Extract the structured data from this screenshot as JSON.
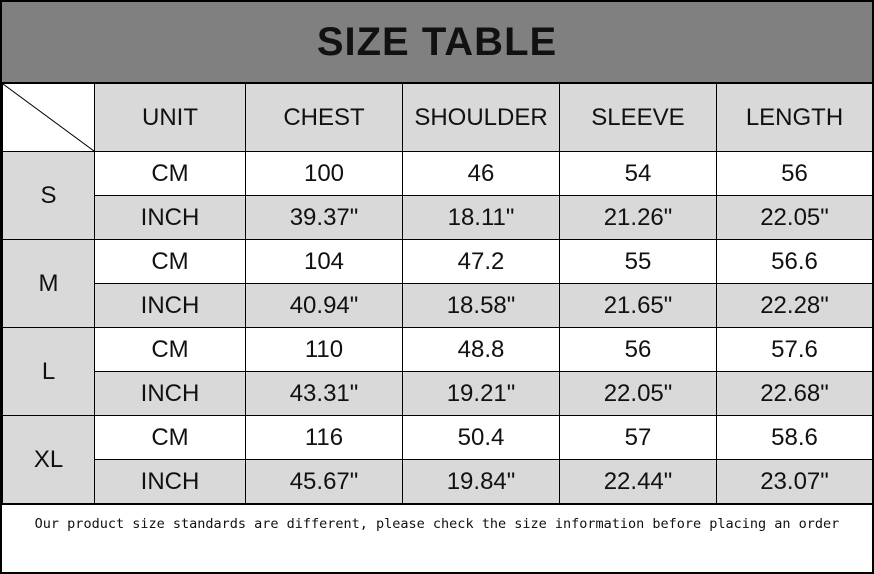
{
  "title": "SIZE TABLE",
  "headers": [
    "UNIT",
    "CHEST",
    "SHOULDER",
    "SLEEVE",
    "LENGTH"
  ],
  "sizes": [
    {
      "size": "S",
      "rows": [
        [
          "CM",
          "100",
          "46",
          "54",
          "56"
        ],
        [
          "INCH",
          "39.37\"",
          "18.11\"",
          "21.26\"",
          "22.05\""
        ]
      ]
    },
    {
      "size": "M",
      "rows": [
        [
          "CM",
          "104",
          "47.2",
          "55",
          "56.6"
        ],
        [
          "INCH",
          "40.94\"",
          "18.58\"",
          "21.65\"",
          "22.28\""
        ]
      ]
    },
    {
      "size": "L",
      "rows": [
        [
          "CM",
          "110",
          "48.8",
          "56",
          "57.6"
        ],
        [
          "INCH",
          "43.31\"",
          "19.21\"",
          "22.05\"",
          "22.68\""
        ]
      ]
    },
    {
      "size": "XL",
      "rows": [
        [
          "CM",
          "116",
          "50.4",
          "57",
          "58.6"
        ],
        [
          "INCH",
          "45.67\"",
          "19.84\"",
          "22.44\"",
          "23.07\""
        ]
      ]
    }
  ],
  "footer": "Our product size standards are different, please check the size information before placing an order",
  "colors": {
    "title_bg": "#808080",
    "cell_gray": "#d9d9d9",
    "cell_white": "#ffffff"
  }
}
